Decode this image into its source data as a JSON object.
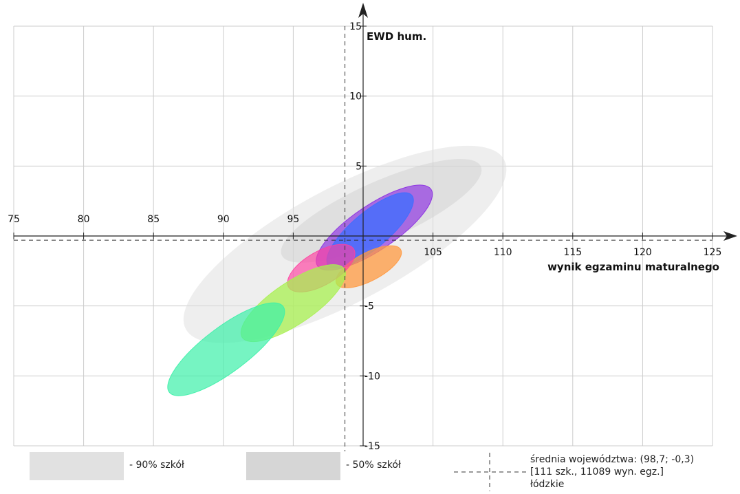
{
  "chart_data": {
    "type": "scatter",
    "xlabel": "wynik egzaminu maturalnego",
    "ylabel": "EWD hum.",
    "xlim": [
      75,
      125
    ],
    "ylim": [
      -15,
      15
    ],
    "x_ticks": [
      "75",
      "80",
      "85",
      "90",
      "95",
      "100",
      "105",
      "110",
      "115",
      "120",
      "125"
    ],
    "y_ticks": [
      "-15",
      "-10",
      "-5",
      "0",
      "5",
      "10",
      "15"
    ],
    "grid": true,
    "regional_mean": {
      "x": 98.7,
      "y": -0.3
    },
    "ellipses": [
      {
        "kind": "90% szkół",
        "cx": 98.7,
        "cy": -0.6,
        "rx": 12.9,
        "ry": 4.1,
        "angle": -28,
        "color": "#dddddd",
        "opacity": 0.5
      },
      {
        "kind": "50% szkół",
        "cx": 101.3,
        "cy": 1.8,
        "rx": 7.8,
        "ry": 2.1,
        "angle": -24,
        "color": "#cfcfcf",
        "opacity": 0.5
      },
      {
        "kind": "school",
        "cx": 100.8,
        "cy": 0.6,
        "rx": 4.9,
        "ry": 1.6,
        "angle": -34,
        "color": "#8a2be2",
        "opacity": 0.65
      },
      {
        "kind": "school",
        "cx": 100.5,
        "cy": 0.4,
        "rx": 3.9,
        "ry": 1.3,
        "angle": -40,
        "color": "#3a6fff",
        "opacity": 0.75
      },
      {
        "kind": "school",
        "cx": 100.4,
        "cy": -2.2,
        "rx": 2.6,
        "ry": 1.0,
        "angle": -28,
        "color": "#ff9940",
        "opacity": 0.75
      },
      {
        "kind": "school",
        "cx": 97.0,
        "cy": -2.3,
        "rx": 2.7,
        "ry": 1.2,
        "angle": -30,
        "color": "#ff3fa0",
        "opacity": 0.65
      },
      {
        "kind": "school",
        "cx": 95.0,
        "cy": -4.8,
        "rx": 4.4,
        "ry": 1.5,
        "angle": -34,
        "color": "#a8f050",
        "opacity": 0.75
      },
      {
        "kind": "school",
        "cx": 90.2,
        "cy": -8.1,
        "rx": 5.1,
        "ry": 1.6,
        "angle": -37,
        "color": "#3cf0a8",
        "opacity": 0.7
      }
    ],
    "legend": [
      {
        "label": "- 90% szkół",
        "color": "#e1e1e1"
      },
      {
        "label": "- 50% szkół",
        "color": "#d6d6d6"
      }
    ],
    "mean_legend": {
      "line1": "średnia województwa: (98,7; -0,3)",
      "line2": "[111 szk., 11089 wyn. egz.]",
      "line3": "łódzkie"
    }
  }
}
